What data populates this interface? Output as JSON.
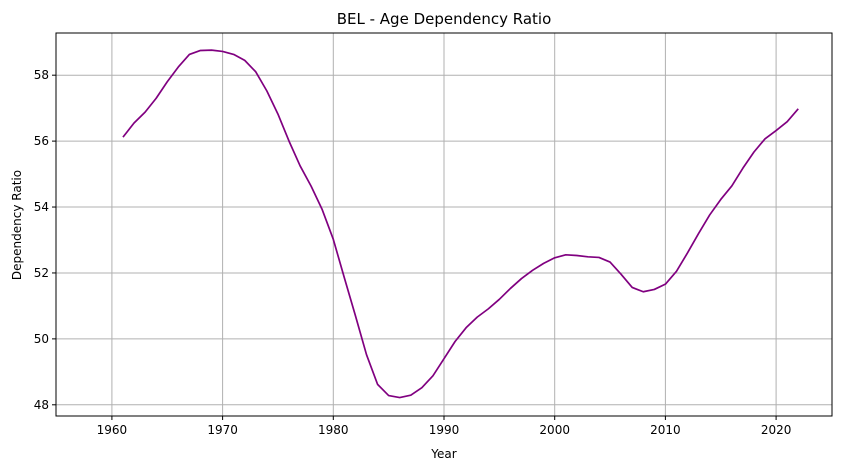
{
  "chart_data": {
    "type": "line",
    "title": "BEL - Age Dependency Ratio",
    "xlabel": "Year",
    "ylabel": "Dependency Ratio",
    "xlim": [
      1954.95,
      2025.05
    ],
    "ylim": [
      47.66,
      59.28
    ],
    "x_ticks": [
      1960,
      1970,
      1980,
      1990,
      2000,
      2010,
      2020
    ],
    "y_ticks": [
      48,
      50,
      52,
      54,
      56,
      58
    ],
    "grid": true,
    "line_color": "#800080",
    "series": [
      {
        "x": [
          1961,
          1962,
          1963,
          1964,
          1965,
          1966,
          1967,
          1968,
          1969,
          1970,
          1971,
          1972,
          1973,
          1974,
          1975,
          1976,
          1977,
          1978,
          1979,
          1980,
          1981,
          1982,
          1983,
          1984,
          1985,
          1986,
          1987,
          1988,
          1989,
          1990,
          1991,
          1992,
          1993,
          1994,
          1995,
          1996,
          1997,
          1998,
          1999,
          2000,
          2001,
          2002,
          2003,
          2004,
          2005,
          2006,
          2007,
          2008,
          2009,
          2010,
          2011,
          2012,
          2013,
          2014,
          2015,
          2016,
          2017,
          2018,
          2019,
          2020,
          2021,
          2022
        ],
        "values": [
          56.12,
          56.55,
          56.88,
          57.3,
          57.8,
          58.25,
          58.63,
          58.75,
          58.76,
          58.72,
          58.63,
          58.45,
          58.1,
          57.52,
          56.82,
          56.0,
          55.25,
          54.63,
          53.92,
          53.02,
          51.85,
          50.7,
          49.52,
          48.62,
          48.28,
          48.22,
          48.29,
          48.52,
          48.88,
          49.4,
          49.92,
          50.34,
          50.66,
          50.91,
          51.2,
          51.53,
          51.83,
          52.08,
          52.29,
          52.46,
          52.55,
          52.53,
          52.49,
          52.47,
          52.33,
          51.96,
          51.56,
          51.43,
          51.5,
          51.66,
          52.05,
          52.61,
          53.2,
          53.76,
          54.23,
          54.64,
          55.18,
          55.67,
          56.07,
          56.32,
          56.59,
          56.98
        ]
      }
    ]
  }
}
